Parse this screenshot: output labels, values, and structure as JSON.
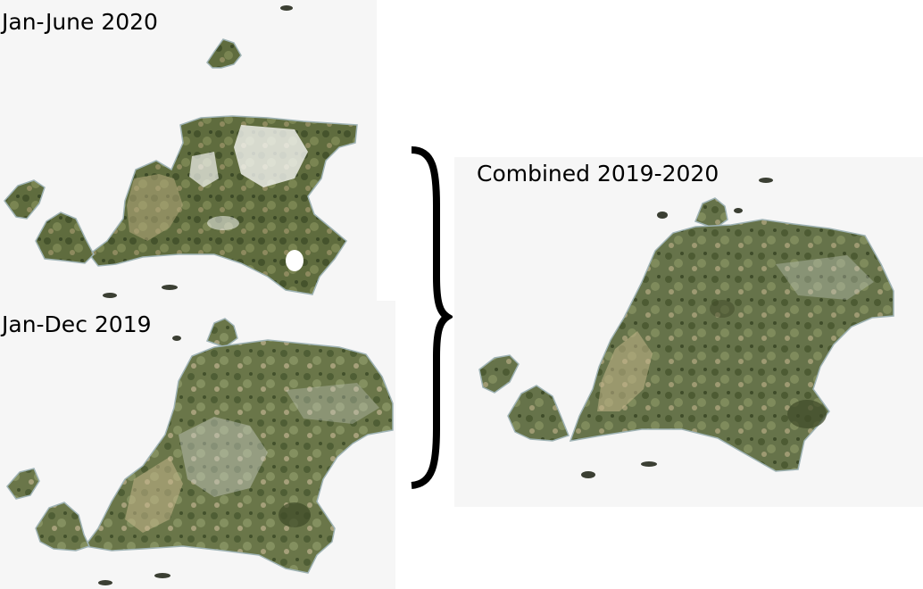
{
  "panels": {
    "jan_june_2020": {
      "label": "Jan-June 2020"
    },
    "jan_dec_2019": {
      "label": "Jan-Dec 2019"
    },
    "combined": {
      "label": "Combined 2019-2020"
    }
  },
  "colors": {
    "panel_background": "#f6f6f6",
    "land_dark": "#4a5a34",
    "land_mid": "#6e7a4a",
    "land_light": "#b9b08a",
    "cloud_gap": "#ffffff",
    "coast_edge": "#9fb3b5",
    "brace": "#000000",
    "text": "#000000"
  }
}
